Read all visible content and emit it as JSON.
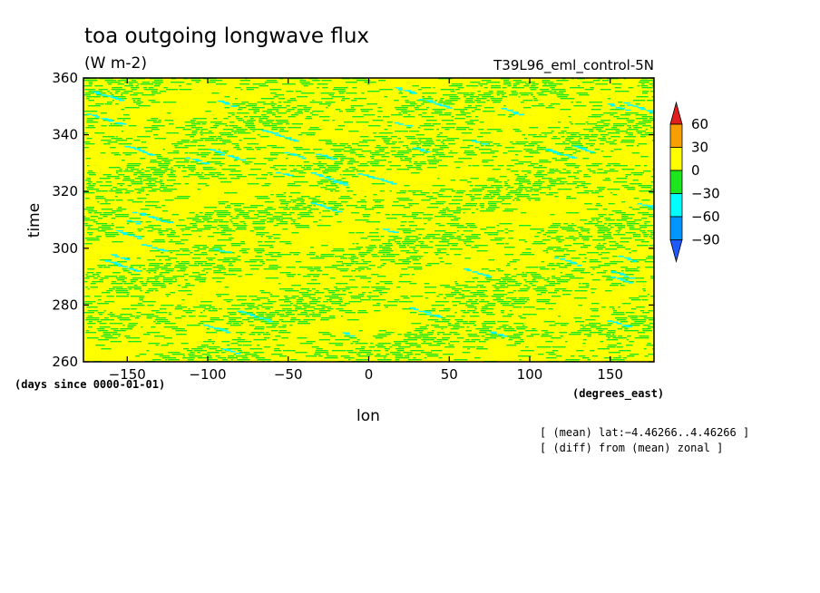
{
  "chart_data": {
    "type": "heatmap",
    "title": "toa outgoing longwave flux",
    "subtitle": "(W m-2)",
    "run_label": "T39L96_eml_control-5N",
    "xlabel": "lon",
    "x_unit_label": "(degrees_east)",
    "ylabel": "time",
    "y_unit_label": "(days since 0000-01-01)",
    "xlim": [
      -177.1875,
      177.1875
    ],
    "ylim": [
      260,
      360
    ],
    "x_ticks": [
      -150,
      -100,
      -50,
      0,
      50,
      100,
      150
    ],
    "x_tick_labels": [
      "−150",
      "−100",
      "−50",
      "0",
      "50",
      "100",
      "150"
    ],
    "y_ticks": [
      260,
      280,
      300,
      320,
      340,
      360
    ],
    "y_tick_labels": [
      "260",
      "280",
      "300",
      "320",
      "340",
      "360"
    ],
    "colorbar": {
      "labels": [
        "60",
        "30",
        "0",
        "−30",
        "−60",
        "−90"
      ],
      "levels": [
        60,
        30,
        0,
        -30,
        -60,
        -90
      ],
      "colors": [
        "#e01e1e",
        "#f5a000",
        "#ffff00",
        "#1ee61e",
        "#00ffff",
        "#0096ff",
        "#1e5aff"
      ]
    },
    "field_summary": {
      "description_values": "anomalies mostly between -30 and 30 W m-2; scattered values below -30 appear as thin westward-propagating streaks",
      "dominant_levels": [
        -30,
        0,
        30
      ],
      "sparse_levels": [
        -60
      ]
    },
    "notes": [
      "[ (mean) lat:−4.46266..4.46266 ]",
      "[ (diff) from (mean) zonal ]"
    ]
  }
}
